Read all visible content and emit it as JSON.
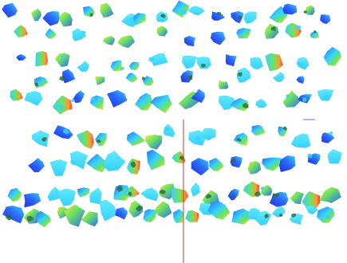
{
  "scene": {
    "background_color": "#ffffff",
    "palette": {
      "deep_blue": "#1d2fe0",
      "blue": "#2b6bff",
      "cyan": "#35d2ff",
      "aqua": "#5fe9ff",
      "green": "#6ee45b",
      "yellow": "#f2e340",
      "orange": "#ff9a2e",
      "red": "#ff3a2a",
      "olive": "#2f6f38",
      "divider_red": "#c0392b",
      "divider_purple": "#8b5cf6"
    }
  }
}
